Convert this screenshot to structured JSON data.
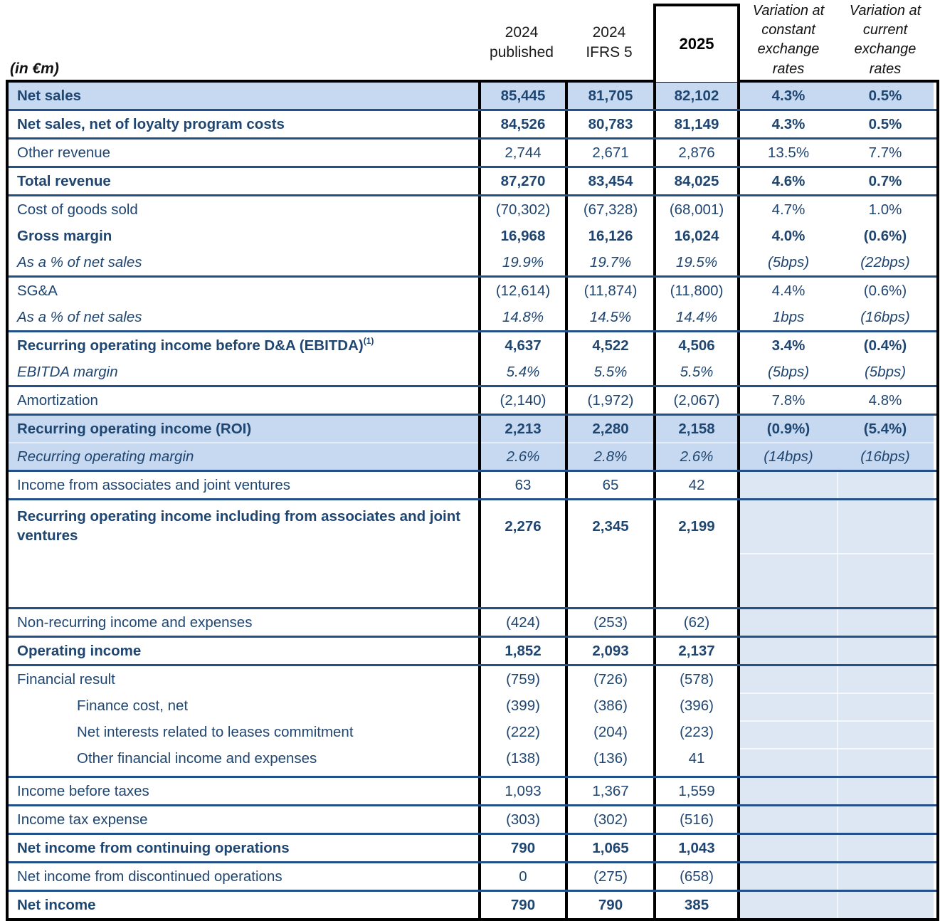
{
  "unit_label": "(in €m)",
  "header": {
    "col_2024_published": "2024\npublished",
    "col_2024_ifrs5": "2024\nIFRS 5",
    "col_2025": "2025",
    "col_var_constant": "Variation at constant exchange rates",
    "col_var_current": "Variation at current exchange rates"
  },
  "colors": {
    "text_navy": "#1F4571",
    "row_border_blue": "#235089",
    "highlight_blue": "#C6D9F0",
    "empty_variation_blue": "#DCE7F3",
    "grid_black": "#000000"
  },
  "rows": [
    {
      "highlight": true,
      "lines": [
        {
          "label": "Net sales",
          "style": "bold",
          "values": [
            "85,445",
            "81,705",
            "82,102"
          ],
          "variation": [
            "4.3%",
            "0.5%"
          ]
        }
      ]
    },
    {
      "lines": [
        {
          "label": "Net sales, net of loyalty program costs",
          "style": "bold",
          "values": [
            "84,526",
            "80,783",
            "81,149"
          ],
          "variation": [
            "4.3%",
            "0.5%"
          ]
        }
      ]
    },
    {
      "lines": [
        {
          "label": "Other revenue",
          "style": "plain",
          "values": [
            "2,744",
            "2,671",
            "2,876"
          ],
          "variation": [
            "13.5%",
            "7.7%"
          ]
        }
      ]
    },
    {
      "lines": [
        {
          "label": "Total revenue",
          "style": "bold",
          "values": [
            "87,270",
            "83,454",
            "84,025"
          ],
          "variation": [
            "4.6%",
            "0.7%"
          ]
        }
      ]
    },
    {
      "lines": [
        {
          "label": "Cost of goods sold",
          "style": "plain",
          "values": [
            "(70,302)",
            "(67,328)",
            "(68,001)"
          ],
          "variation": [
            "4.7%",
            "1.0%"
          ]
        },
        {
          "label": "Gross margin",
          "style": "bold",
          "values": [
            "16,968",
            "16,126",
            "16,024"
          ],
          "variation": [
            "4.0%",
            "(0.6%)"
          ]
        },
        {
          "label": "As a % of net sales",
          "style": "italic",
          "values": [
            "19.9%",
            "19.7%",
            "19.5%"
          ],
          "variation": [
            "(5bps)",
            "(22bps)"
          ]
        }
      ]
    },
    {
      "lines": [
        {
          "label": "SG&A",
          "style": "plain",
          "values": [
            "(12,614)",
            "(11,874)",
            "(11,800)"
          ],
          "variation": [
            "4.4%",
            "(0.6%)"
          ]
        },
        {
          "label": "As a % of net sales",
          "style": "italic",
          "values": [
            "14.8%",
            "14.5%",
            "14.4%"
          ],
          "variation": [
            "1bps",
            "(16bps)"
          ]
        }
      ]
    },
    {
      "lines": [
        {
          "label": "Recurring operating income before D&A (EBITDA)",
          "sup": "(1)",
          "style": "bold",
          "values": [
            "4,637",
            "4,522",
            "4,506"
          ],
          "variation": [
            "3.4%",
            "(0.4%)"
          ]
        },
        {
          "label": "EBITDA margin",
          "style": "italic",
          "values": [
            "5.4%",
            "5.5%",
            "5.5%"
          ],
          "variation": [
            "(5bps)",
            "(5bps)"
          ]
        }
      ]
    },
    {
      "lines": [
        {
          "label": "Amortization",
          "style": "plain",
          "values": [
            "(2,140)",
            "(1,972)",
            "(2,067)"
          ],
          "variation": [
            "7.8%",
            "4.8%"
          ]
        }
      ]
    },
    {
      "highlight": true,
      "lines": [
        {
          "label": "Recurring operating income (ROI)",
          "style": "bold",
          "values": [
            "2,213",
            "2,280",
            "2,158"
          ],
          "variation": [
            "(0.9%)",
            "(5.4%)"
          ]
        },
        {
          "label": "Recurring operating margin",
          "style": "italic",
          "values": [
            "2.6%",
            "2.8%",
            "2.6%"
          ],
          "variation": [
            "(14bps)",
            "(16bps)"
          ]
        }
      ]
    },
    {
      "variation_empty": true,
      "lines": [
        {
          "label": "Income from associates and joint ventures",
          "style": "plain",
          "values": [
            "63",
            "65",
            "42"
          ]
        }
      ]
    },
    {
      "variation_empty": true,
      "tall": true,
      "lines": [
        {
          "label": "Recurring operating income including from associates and joint ventures",
          "style": "bold",
          "values": [
            "2,276",
            "2,345",
            "2,199"
          ]
        }
      ]
    },
    {
      "variation_empty": true,
      "lines": [
        {
          "label": "Non-recurring income and expenses",
          "style": "plain",
          "values": [
            "(424)",
            "(253)",
            "(62)"
          ]
        }
      ]
    },
    {
      "variation_empty": true,
      "lines": [
        {
          "label": "Operating income",
          "style": "bold",
          "values": [
            "1,852",
            "2,093",
            "2,137"
          ]
        }
      ]
    },
    {
      "variation_empty": true,
      "lines": [
        {
          "label": "Financial result",
          "style": "plain",
          "values": [
            "(759)",
            "(726)",
            "(578)"
          ]
        },
        {
          "label": "Finance cost, net",
          "style": "indent",
          "values": [
            "(399)",
            "(386)",
            "(396)"
          ]
        },
        {
          "label": "Net interests related to leases commitment",
          "style": "indent",
          "values": [
            "(222)",
            "(204)",
            "(223)"
          ]
        },
        {
          "label": "Other financial income and expenses",
          "style": "indent",
          "values": [
            "(138)",
            "(136)",
            "41"
          ]
        }
      ]
    },
    {
      "variation_empty": true,
      "lines": [
        {
          "label": "Income before taxes",
          "style": "plain",
          "values": [
            "1,093",
            "1,367",
            "1,559"
          ]
        }
      ]
    },
    {
      "variation_empty": true,
      "lines": [
        {
          "label": "Income tax expense",
          "style": "plain",
          "values": [
            "(303)",
            "(302)",
            "(516)"
          ]
        }
      ]
    },
    {
      "variation_empty": true,
      "lines": [
        {
          "label": "Net income from continuing operations",
          "style": "bold",
          "values": [
            "790",
            "1,065",
            "1,043"
          ]
        }
      ]
    },
    {
      "variation_empty": true,
      "lines": [
        {
          "label": "Net income from discontinued operations",
          "style": "plain",
          "values": [
            "0",
            "(275)",
            "(658)"
          ]
        }
      ]
    },
    {
      "variation_empty": true,
      "lines": [
        {
          "label": "Net income",
          "style": "bold",
          "values": [
            "790",
            "790",
            "385"
          ]
        }
      ]
    }
  ]
}
